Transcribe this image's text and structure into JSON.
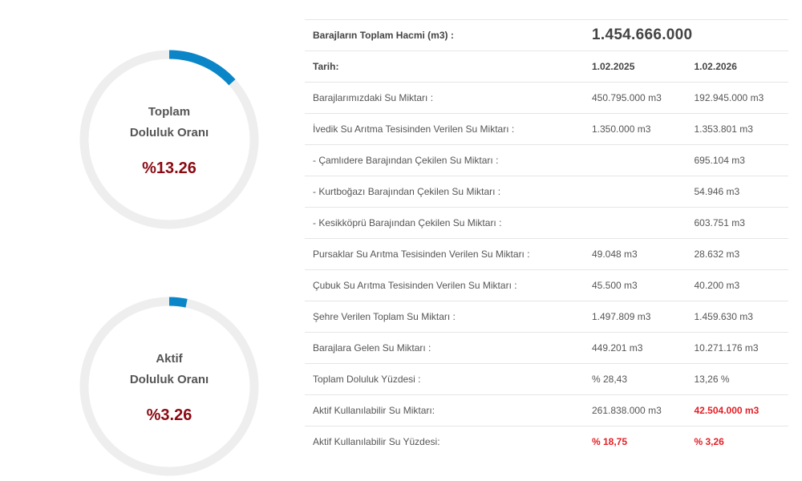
{
  "colors": {
    "accent": "#0a86c8",
    "track": "#eeeeee",
    "value_dark_red": "#8b0a12",
    "highlight_red": "#e31e24"
  },
  "gauges": {
    "total": {
      "line1": "Toplam",
      "line2": "Doluluk Oranı",
      "value": "%13.26",
      "percent": 13.26
    },
    "active": {
      "line1": "Aktif",
      "line2": "Doluluk Oranı",
      "value": "%3.26",
      "percent": 3.26
    }
  },
  "table": {
    "volume_label": "Barajların Toplam Hacmi (m3) :",
    "volume_value": "1.454.666.000",
    "date_label": "Tarih:",
    "date1": "1.02.2025",
    "date2": "1.02.2026",
    "rows": [
      {
        "label": "Barajlarımızdaki Su Miktarı :",
        "v1": "450.795.000 m3",
        "v2": "192.945.000 m3"
      },
      {
        "label": "İvedik Su Arıtma Tesisinden Verilen Su Miktarı :",
        "v1": "1.350.000 m3",
        "v2": "1.353.801 m3"
      },
      {
        "label": "- Çamlıdere Barajından Çekilen Su Miktarı :",
        "v1": "",
        "v2": "695.104 m3"
      },
      {
        "label": "- Kurtboğazı Barajından Çekilen Su Miktarı :",
        "v1": "",
        "v2": "54.946 m3"
      },
      {
        "label": "- Kesikköprü Barajından Çekilen Su Miktarı :",
        "v1": "",
        "v2": "603.751 m3"
      },
      {
        "label": "Pursaklar Su Arıtma Tesisinden Verilen Su Miktarı :",
        "v1": "49.048 m3",
        "v2": "28.632 m3"
      },
      {
        "label": "Çubuk Su Arıtma Tesisinden Verilen Su Miktarı :",
        "v1": "45.500 m3",
        "v2": "40.200 m3"
      },
      {
        "label": "Şehre Verilen Toplam Su Miktarı :",
        "v1": "1.497.809 m3",
        "v2": "1.459.630 m3"
      },
      {
        "label": "Barajlara Gelen Su Miktarı :",
        "v1": "449.201 m3",
        "v2": "10.271.176 m3"
      },
      {
        "label": "Toplam Doluluk Yüzdesi :",
        "v1": "% 28,43",
        "v2": "13,26 %"
      },
      {
        "label": "Aktif Kullanılabilir Su Miktarı:",
        "v1": "261.838.000 m3",
        "v2": "42.504.000 m3"
      },
      {
        "label": "Aktif Kullanılabilir Su Yüzdesi:",
        "v1": "% 18,75",
        "v2": "% 3,26"
      }
    ]
  }
}
